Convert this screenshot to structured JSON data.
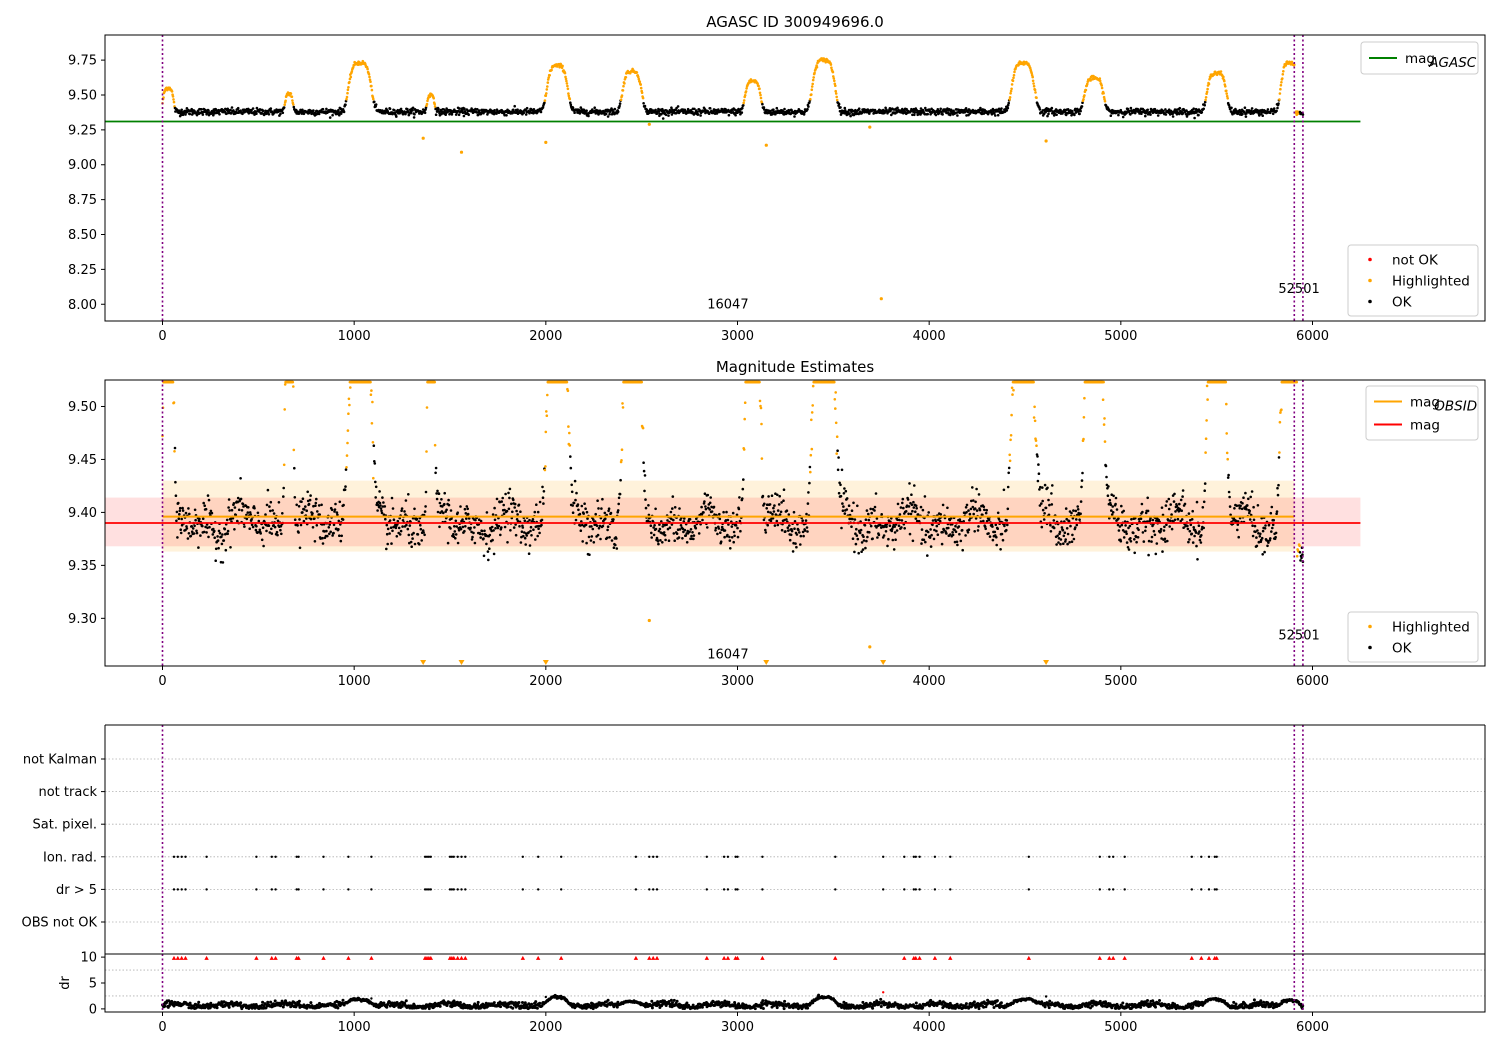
{
  "colors": {
    "ok": "#000000",
    "highlighted": "#ffa500",
    "not_ok": "#ff0000",
    "agasc_line": "#008000",
    "obsid_line": "#ffa500",
    "mag_line": "#ff0000",
    "marker_line": "#800080",
    "grid": "#b0b0b0",
    "band_obsid": "#ffa500",
    "band_mag": "#ff0000"
  },
  "chart_data": [
    {
      "id": "agasc",
      "type": "scatter",
      "title": "AGASC ID 300949696.0",
      "xlim": [
        -300,
        6900
      ],
      "ylim": [
        7.88,
        9.93
      ],
      "x_ticks": [
        0,
        1000,
        2000,
        3000,
        4000,
        5000,
        6000
      ],
      "x_tick_labels": [
        "0",
        "1000",
        "2000",
        "3000",
        "4000",
        "5000",
        "6000"
      ],
      "y_ticks": [
        8.0,
        8.25,
        8.5,
        8.75,
        9.0,
        9.25,
        9.5,
        9.75
      ],
      "y_tick_labels": [
        "8.00",
        "8.25",
        "8.50",
        "8.75",
        "9.00",
        "9.25",
        "9.50",
        "9.75"
      ],
      "hline": {
        "value": 9.31,
        "x_range": [
          -300,
          6250
        ],
        "name": "mag_AGASC"
      },
      "vlines": [
        0,
        5905,
        5950
      ],
      "annotations": [
        {
          "text": "16047",
          "x": 2950,
          "y": 7.97
        },
        {
          "text": "52501",
          "x": 5930,
          "y": 8.08
        }
      ],
      "legends": [
        {
          "position": "top-right",
          "entries": [
            {
              "label": "mag",
              "subscript": "AGASC",
              "kind": "line",
              "color_key": "agasc_line"
            }
          ]
        },
        {
          "position": "bottom-right",
          "entries": [
            {
              "label": "not OK",
              "kind": "dot",
              "color_key": "not_ok"
            },
            {
              "label": "Highlighted",
              "kind": "dot",
              "color_key": "highlighted"
            },
            {
              "label": "OK",
              "kind": "dot",
              "color_key": "ok"
            }
          ]
        }
      ],
      "baseline": 9.38,
      "noise": 0.012,
      "x_start": 0,
      "x_end": 5950,
      "humps": [
        {
          "center": 30,
          "width": 30,
          "peak": 9.55
        },
        {
          "center": 660,
          "width": 22,
          "peak": 9.51
        },
        {
          "center": 1030,
          "width": 65,
          "peak": 9.73
        },
        {
          "center": 1400,
          "width": 22,
          "peak": 9.5
        },
        {
          "center": 2060,
          "width": 60,
          "peak": 9.71
        },
        {
          "center": 2450,
          "width": 55,
          "peak": 9.67
        },
        {
          "center": 3080,
          "width": 45,
          "peak": 9.6
        },
        {
          "center": 3450,
          "width": 65,
          "peak": 9.75
        },
        {
          "center": 4490,
          "width": 65,
          "peak": 9.73
        },
        {
          "center": 4860,
          "width": 55,
          "peak": 9.62
        },
        {
          "center": 5500,
          "width": 55,
          "peak": 9.66
        },
        {
          "center": 5880,
          "width": 50,
          "peak": 9.73
        }
      ],
      "outliers": [
        {
          "x": 1360,
          "y": 9.19
        },
        {
          "x": 1560,
          "y": 9.09
        },
        {
          "x": 2000,
          "y": 9.16
        },
        {
          "x": 2540,
          "y": 9.29
        },
        {
          "x": 3150,
          "y": 9.14
        },
        {
          "x": 3690,
          "y": 9.27
        },
        {
          "x": 3750,
          "y": 8.04
        },
        {
          "x": 4610,
          "y": 9.17
        }
      ]
    },
    {
      "id": "estimates",
      "type": "scatter",
      "title": "Magnitude Estimates",
      "xlim": [
        -300,
        6900
      ],
      "ylim": [
        9.255,
        9.525
      ],
      "x_ticks": [
        0,
        1000,
        2000,
        3000,
        4000,
        5000,
        6000
      ],
      "x_tick_labels": [
        "0",
        "1000",
        "2000",
        "3000",
        "4000",
        "5000",
        "6000"
      ],
      "y_ticks": [
        9.3,
        9.35,
        9.4,
        9.45,
        9.5
      ],
      "y_tick_labels": [
        "9.30",
        "9.35",
        "9.40",
        "9.45",
        "9.50"
      ],
      "mag_obsid": {
        "value": 9.396,
        "band": [
          9.363,
          9.43
        ],
        "x_range": [
          0,
          5905
        ],
        "name": "mag_OBSID"
      },
      "mag": {
        "value": 9.39,
        "band": [
          9.368,
          9.414
        ],
        "x_range": [
          -300,
          6250
        ],
        "name": "mag"
      },
      "vlines": [
        0,
        5905,
        5950
      ],
      "annotations": [
        {
          "text": "16047",
          "x": 2950,
          "y": 9.262
        },
        {
          "text": "52501",
          "x": 5930,
          "y": 9.28
        }
      ],
      "legends": [
        {
          "position": "top-right",
          "entries": [
            {
              "label": "mag",
              "subscript": "OBSID",
              "kind": "line",
              "color_key": "obsid_line"
            },
            {
              "label": "mag",
              "kind": "line",
              "color_key": "mag_line"
            }
          ]
        },
        {
          "position": "bottom-right",
          "entries": [
            {
              "label": "Highlighted",
              "kind": "dot",
              "color_key": "highlighted"
            },
            {
              "label": "OK",
              "kind": "dot",
              "color_key": "ok"
            }
          ]
        }
      ],
      "baseline": 9.39,
      "noise": 0.018,
      "x_start": 0,
      "x_end": 5950,
      "tail_value": 9.36,
      "spikes": [
        {
          "center": 30,
          "width": 30
        },
        {
          "center": 660,
          "width": 25
        },
        {
          "center": 1030,
          "width": 65
        },
        {
          "center": 1400,
          "width": 22
        },
        {
          "center": 2060,
          "width": 60
        },
        {
          "center": 2450,
          "width": 55
        },
        {
          "center": 3080,
          "width": 45
        },
        {
          "center": 3450,
          "width": 65
        },
        {
          "center": 4490,
          "width": 65
        },
        {
          "center": 4860,
          "width": 55
        },
        {
          "center": 5500,
          "width": 55
        },
        {
          "center": 5880,
          "width": 50
        }
      ],
      "low_markers": [
        1360,
        1560,
        2000,
        3150,
        3760,
        4610
      ],
      "outliers": [
        {
          "x": 2540,
          "y": 9.298
        },
        {
          "x": 3690,
          "y": 9.273
        }
      ]
    },
    {
      "id": "flags",
      "type": "scatter",
      "xlim": [
        -300,
        6900
      ],
      "categories": [
        "OBS not OK",
        "dr > 5",
        "Ion. rad.",
        "Sat. pixel.",
        "not track",
        "not Kalman"
      ],
      "flag_x": [
        60,
        80,
        100,
        120,
        230,
        490,
        570,
        590,
        700,
        710,
        840,
        970,
        1090,
        1370,
        1380,
        1390,
        1400,
        1500,
        1510,
        1520,
        1540,
        1560,
        1580,
        1880,
        1960,
        2080,
        2470,
        2540,
        2560,
        2580,
        2840,
        2930,
        2950,
        2990,
        3000,
        3130,
        3510,
        3760,
        3870,
        3920,
        3930,
        3950,
        4030,
        4110,
        4520,
        4890,
        4940,
        4960,
        5020,
        5370,
        5420,
        5460,
        5490,
        5500
      ],
      "flag_rows": [
        "dr > 5",
        "Ion. rad."
      ],
      "vlines": [
        0,
        5905,
        5950
      ]
    },
    {
      "id": "dr",
      "type": "scatter",
      "xlim": [
        -300,
        6900
      ],
      "ylim": [
        -0.6,
        10.6
      ],
      "x_ticks": [
        0,
        1000,
        2000,
        3000,
        4000,
        5000,
        6000
      ],
      "x_tick_labels": [
        "0",
        "1000",
        "2000",
        "3000",
        "4000",
        "5000",
        "6000"
      ],
      "y_ticks": [
        0,
        5,
        10
      ],
      "y_tick_labels": [
        "0",
        "5",
        "10"
      ],
      "ylabel": "dr",
      "clip_value": 10,
      "clip_markers": [
        60,
        80,
        100,
        120,
        230,
        490,
        570,
        590,
        700,
        710,
        840,
        970,
        1090,
        1370,
        1380,
        1390,
        1400,
        1500,
        1510,
        1520,
        1540,
        1560,
        1580,
        1880,
        1960,
        2080,
        2470,
        2540,
        2560,
        2580,
        2840,
        2930,
        2950,
        2990,
        3000,
        3130,
        3510,
        3870,
        3920,
        3930,
        3950,
        4030,
        4110,
        4520,
        4890,
        4940,
        4960,
        5020,
        5370,
        5420,
        5460,
        5490,
        5500
      ],
      "baseline": 0.7,
      "noise": 0.3,
      "x_start": 0,
      "x_end": 5950,
      "humps": [
        {
          "center": 1030,
          "width": 65,
          "peak": 2.0
        },
        {
          "center": 2060,
          "width": 60,
          "peak": 2.0
        },
        {
          "center": 2450,
          "width": 55,
          "peak": 1.6
        },
        {
          "center": 3450,
          "width": 65,
          "peak": 2.0
        },
        {
          "center": 4490,
          "width": 65,
          "peak": 2.0
        },
        {
          "center": 5500,
          "width": 55,
          "peak": 1.8
        },
        {
          "center": 5880,
          "width": 50,
          "peak": 1.9
        }
      ],
      "outliers": [
        {
          "x": 3760,
          "y": 3.2
        },
        {
          "x": 2000,
          "y": 2.3
        },
        {
          "x": 4610,
          "y": 2.4
        },
        {
          "x": 1090,
          "y": 2.0
        }
      ],
      "vlines": [
        0,
        5905,
        5950
      ]
    }
  ]
}
